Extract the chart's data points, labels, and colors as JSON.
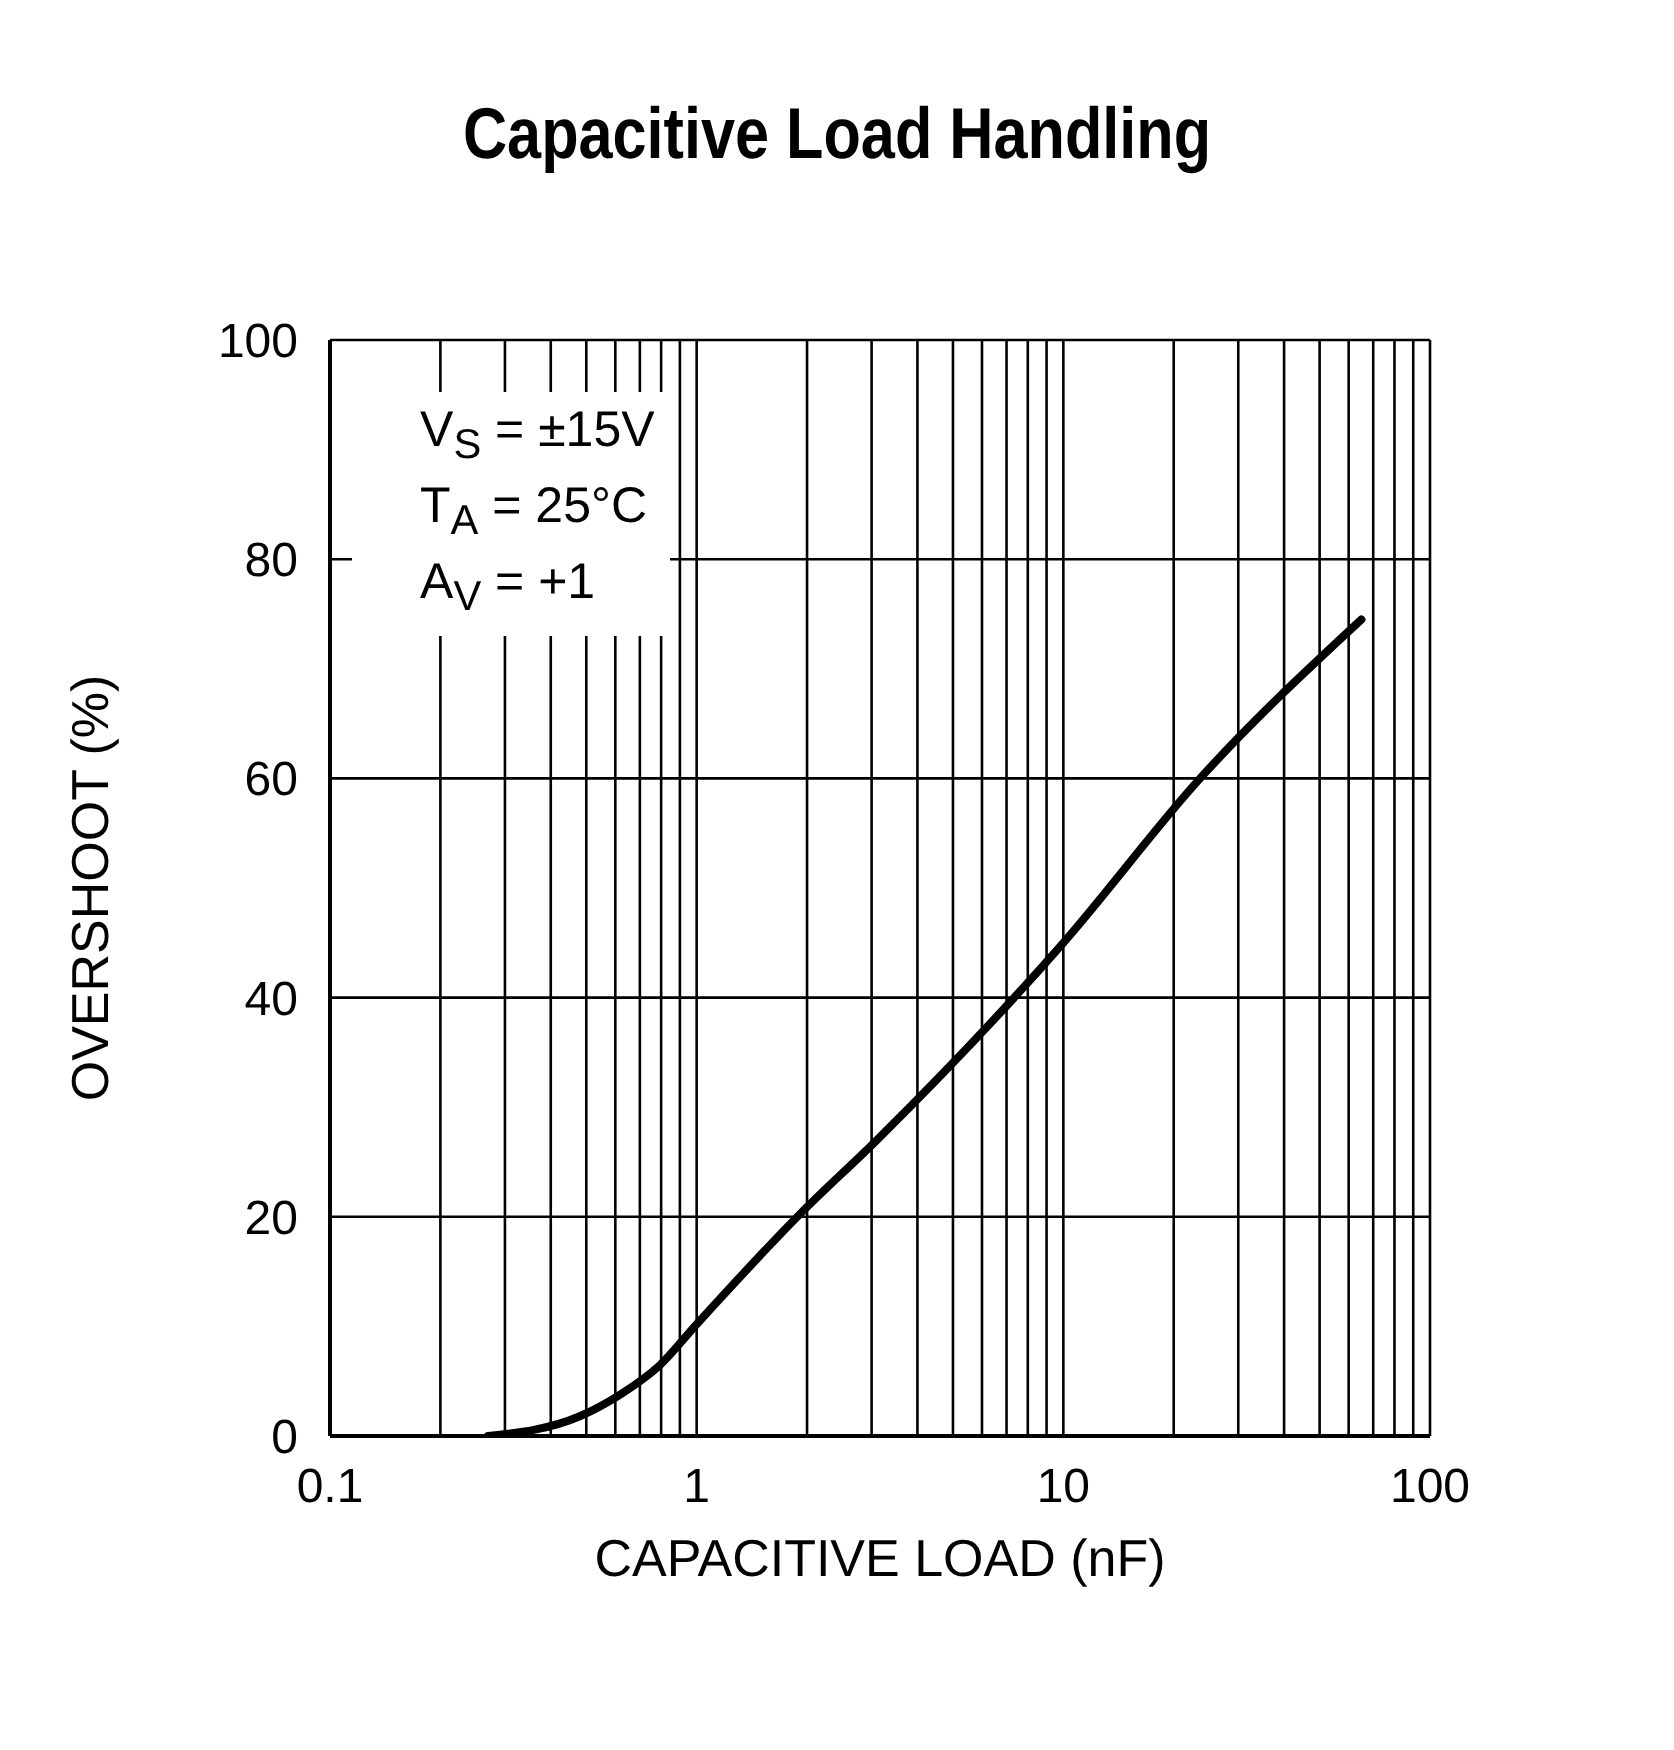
{
  "chart_data": {
    "type": "line",
    "title": "Capacitive Load Handling",
    "xlabel": "CAPACITIVE LOAD (nF)",
    "ylabel": "OVERSHOOT (%)",
    "annotations": [
      "V$_{S}$ = ±15V",
      "T$_{A}$ = 25°C",
      "A$_{V}$ = +1"
    ],
    "log": "x",
    "grid": true,
    "marker": "none",
    "line_style": "solid",
    "xlim": [
      0.1,
      100
    ],
    "ylim": [
      0,
      100
    ],
    "xticks": [
      "0.1",
      {
        "value": 0.2,
        "label": null
      },
      {
        "value": 0.3,
        "label": null
      },
      {
        "value": 0.4,
        "label": null
      },
      {
        "value": 0.5,
        "label": null
      },
      {
        "value": 0.6,
        "label": null
      },
      {
        "value": 0.7,
        "label": null
      },
      {
        "value": 0.8,
        "label": null
      },
      {
        "value": 0.9,
        "label": null
      },
      1,
      {
        "value": 2,
        "label": null
      },
      {
        "value": 3,
        "label": null
      },
      {
        "value": 4,
        "label": null
      },
      {
        "value": 5,
        "label": null
      },
      {
        "value": 6,
        "label": null
      },
      {
        "value": 7,
        "label": null
      },
      {
        "value": 8,
        "label": null
      },
      {
        "value": 9,
        "label": null
      },
      10,
      {
        "value": 20,
        "label": null
      },
      {
        "value": 30,
        "label": null
      },
      {
        "value": 40,
        "label": null
      },
      {
        "value": 50,
        "label": null
      },
      {
        "value": 60,
        "label": null
      },
      {
        "value": 70,
        "label": null
      },
      {
        "value": 80,
        "label": null
      },
      {
        "value": 90,
        "label": null
      },
      100
    ],
    "yticks": [
      0,
      20,
      40,
      60,
      80,
      100
    ],
    "series": [
      {
        "color": "#000000",
        "x": [
          0.27,
          0.48,
          0.62,
          0.79,
          1,
          1.92,
          3.1,
          10,
          23.6,
          65
        ],
        "values": [
          0,
          1.8,
          3.8,
          6.4,
          10.2,
          20.3,
          27,
          45,
          60,
          74.5
        ]
      }
    ]
  }
}
